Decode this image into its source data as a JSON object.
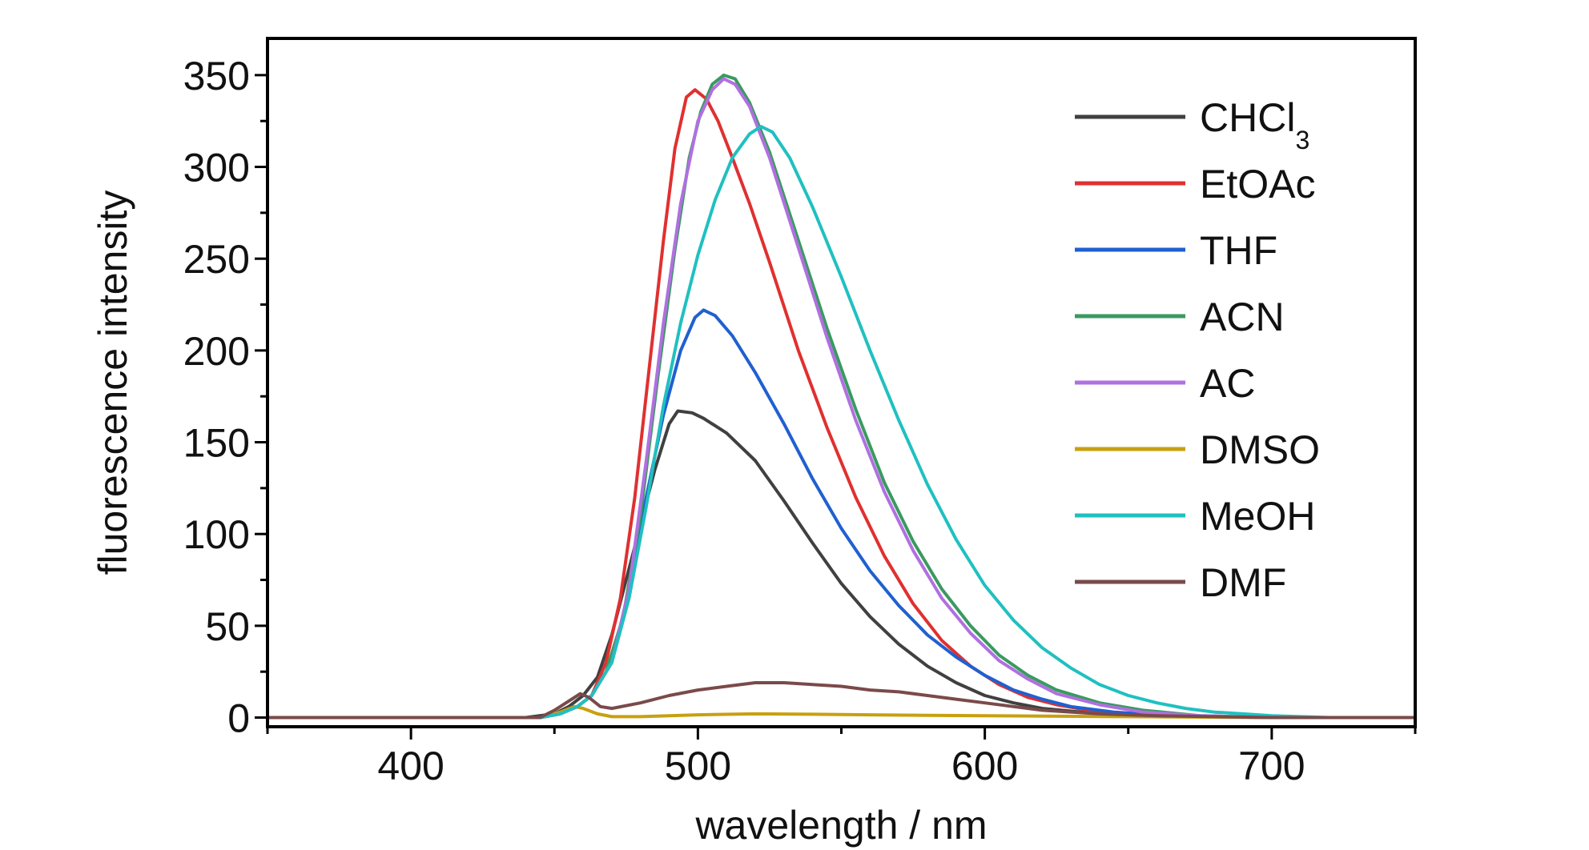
{
  "chart_data": {
    "type": "line",
    "xlabel": "wavelength / nm",
    "ylabel": "fluorescence intensity",
    "xlim": [
      350,
      750
    ],
    "ylim": [
      -5,
      370
    ],
    "xticks": [
      400,
      500,
      600,
      700
    ],
    "yticks": [
      0,
      50,
      100,
      150,
      200,
      250,
      300,
      350
    ],
    "grid": false,
    "legend_position": "top-right",
    "series": [
      {
        "name": "CHCl",
        "subscript": "3",
        "color": "#404040",
        "points": [
          [
            350,
            0
          ],
          [
            440,
            0
          ],
          [
            450,
            2
          ],
          [
            455,
            6
          ],
          [
            460,
            12
          ],
          [
            465,
            22
          ],
          [
            470,
            45
          ],
          [
            475,
            75
          ],
          [
            480,
            105
          ],
          [
            485,
            135
          ],
          [
            490,
            160
          ],
          [
            493,
            167
          ],
          [
            498,
            166
          ],
          [
            502,
            163
          ],
          [
            510,
            155
          ],
          [
            520,
            140
          ],
          [
            530,
            118
          ],
          [
            540,
            95
          ],
          [
            550,
            73
          ],
          [
            560,
            55
          ],
          [
            570,
            40
          ],
          [
            580,
            28
          ],
          [
            590,
            19
          ],
          [
            600,
            12
          ],
          [
            610,
            8
          ],
          [
            620,
            5
          ],
          [
            640,
            2
          ],
          [
            660,
            1
          ],
          [
            700,
            0
          ],
          [
            750,
            0
          ]
        ]
      },
      {
        "name": "EtOAc",
        "color": "#e03030",
        "points": [
          [
            350,
            0
          ],
          [
            445,
            0
          ],
          [
            452,
            2
          ],
          [
            458,
            6
          ],
          [
            463,
            12
          ],
          [
            468,
            30
          ],
          [
            473,
            65
          ],
          [
            478,
            120
          ],
          [
            483,
            190
          ],
          [
            488,
            260
          ],
          [
            492,
            310
          ],
          [
            496,
            338
          ],
          [
            499,
            342
          ],
          [
            503,
            337
          ],
          [
            507,
            325
          ],
          [
            512,
            305
          ],
          [
            518,
            280
          ],
          [
            525,
            248
          ],
          [
            535,
            200
          ],
          [
            545,
            158
          ],
          [
            555,
            120
          ],
          [
            565,
            88
          ],
          [
            575,
            62
          ],
          [
            585,
            42
          ],
          [
            595,
            28
          ],
          [
            605,
            18
          ],
          [
            615,
            11
          ],
          [
            625,
            7
          ],
          [
            640,
            3
          ],
          [
            660,
            1
          ],
          [
            700,
            0
          ],
          [
            750,
            0
          ]
        ]
      },
      {
        "name": "THF",
        "color": "#2060d0",
        "points": [
          [
            350,
            0
          ],
          [
            445,
            0
          ],
          [
            452,
            2
          ],
          [
            458,
            6
          ],
          [
            463,
            12
          ],
          [
            470,
            30
          ],
          [
            476,
            70
          ],
          [
            482,
            120
          ],
          [
            488,
            165
          ],
          [
            494,
            200
          ],
          [
            499,
            218
          ],
          [
            502,
            222
          ],
          [
            506,
            219
          ],
          [
            512,
            208
          ],
          [
            520,
            188
          ],
          [
            530,
            160
          ],
          [
            540,
            130
          ],
          [
            550,
            103
          ],
          [
            560,
            80
          ],
          [
            570,
            61
          ],
          [
            580,
            45
          ],
          [
            590,
            33
          ],
          [
            600,
            23
          ],
          [
            610,
            15
          ],
          [
            620,
            10
          ],
          [
            630,
            6
          ],
          [
            645,
            3
          ],
          [
            665,
            1
          ],
          [
            700,
            0
          ],
          [
            750,
            0
          ]
        ]
      },
      {
        "name": "ACN",
        "color": "#3a9a60",
        "points": [
          [
            350,
            0
          ],
          [
            445,
            0
          ],
          [
            452,
            2
          ],
          [
            458,
            6
          ],
          [
            463,
            12
          ],
          [
            468,
            25
          ],
          [
            474,
            55
          ],
          [
            480,
            110
          ],
          [
            486,
            185
          ],
          [
            492,
            255
          ],
          [
            497,
            305
          ],
          [
            501,
            330
          ],
          [
            505,
            345
          ],
          [
            509,
            350
          ],
          [
            513,
            348
          ],
          [
            518,
            335
          ],
          [
            525,
            308
          ],
          [
            535,
            260
          ],
          [
            545,
            212
          ],
          [
            555,
            168
          ],
          [
            565,
            128
          ],
          [
            575,
            96
          ],
          [
            585,
            70
          ],
          [
            595,
            50
          ],
          [
            605,
            34
          ],
          [
            615,
            23
          ],
          [
            625,
            15
          ],
          [
            640,
            8
          ],
          [
            655,
            4
          ],
          [
            675,
            1
          ],
          [
            700,
            0
          ],
          [
            750,
            0
          ]
        ]
      },
      {
        "name": "AC",
        "color": "#b070e0",
        "points": [
          [
            350,
            0
          ],
          [
            445,
            0
          ],
          [
            452,
            2
          ],
          [
            458,
            6
          ],
          [
            463,
            12
          ],
          [
            470,
            30
          ],
          [
            476,
            70
          ],
          [
            482,
            140
          ],
          [
            488,
            215
          ],
          [
            494,
            280
          ],
          [
            500,
            325
          ],
          [
            505,
            342
          ],
          [
            509,
            348
          ],
          [
            513,
            345
          ],
          [
            518,
            333
          ],
          [
            525,
            305
          ],
          [
            535,
            256
          ],
          [
            545,
            207
          ],
          [
            555,
            162
          ],
          [
            565,
            123
          ],
          [
            575,
            91
          ],
          [
            585,
            65
          ],
          [
            595,
            46
          ],
          [
            605,
            31
          ],
          [
            615,
            21
          ],
          [
            625,
            13
          ],
          [
            640,
            7
          ],
          [
            655,
            3
          ],
          [
            675,
            1
          ],
          [
            700,
            0
          ],
          [
            750,
            0
          ]
        ]
      },
      {
        "name": "DMSO",
        "color": "#c8a010",
        "points": [
          [
            350,
            0
          ],
          [
            445,
            0
          ],
          [
            452,
            3
          ],
          [
            457,
            6
          ],
          [
            460,
            5
          ],
          [
            465,
            2
          ],
          [
            470,
            0.5
          ],
          [
            480,
            0.5
          ],
          [
            500,
            1.5
          ],
          [
            520,
            2
          ],
          [
            540,
            1.8
          ],
          [
            560,
            1.5
          ],
          [
            580,
            1.2
          ],
          [
            600,
            1
          ],
          [
            650,
            0.5
          ],
          [
            700,
            0
          ],
          [
            750,
            0
          ]
        ]
      },
      {
        "name": "MeOH",
        "color": "#20c0c0",
        "points": [
          [
            350,
            0
          ],
          [
            445,
            0
          ],
          [
            452,
            2
          ],
          [
            458,
            6
          ],
          [
            463,
            12
          ],
          [
            470,
            30
          ],
          [
            476,
            65
          ],
          [
            482,
            115
          ],
          [
            488,
            170
          ],
          [
            494,
            215
          ],
          [
            500,
            252
          ],
          [
            506,
            282
          ],
          [
            512,
            305
          ],
          [
            518,
            318
          ],
          [
            522,
            322
          ],
          [
            526,
            319
          ],
          [
            532,
            305
          ],
          [
            540,
            278
          ],
          [
            550,
            240
          ],
          [
            560,
            200
          ],
          [
            570,
            162
          ],
          [
            580,
            127
          ],
          [
            590,
            97
          ],
          [
            600,
            72
          ],
          [
            610,
            53
          ],
          [
            620,
            38
          ],
          [
            630,
            27
          ],
          [
            640,
            18
          ],
          [
            650,
            12
          ],
          [
            660,
            8
          ],
          [
            670,
            5
          ],
          [
            680,
            3
          ],
          [
            690,
            2
          ],
          [
            700,
            1
          ],
          [
            720,
            0
          ],
          [
            750,
            0
          ]
        ]
      },
      {
        "name": "DMF",
        "color": "#7a4a4a",
        "points": [
          [
            350,
            0
          ],
          [
            445,
            0
          ],
          [
            450,
            4
          ],
          [
            455,
            9
          ],
          [
            459,
            13
          ],
          [
            462,
            11
          ],
          [
            466,
            6
          ],
          [
            470,
            5
          ],
          [
            480,
            8
          ],
          [
            490,
            12
          ],
          [
            500,
            15
          ],
          [
            510,
            17
          ],
          [
            520,
            19
          ],
          [
            530,
            19
          ],
          [
            540,
            18
          ],
          [
            550,
            17
          ],
          [
            560,
            15
          ],
          [
            570,
            14
          ],
          [
            580,
            12
          ],
          [
            590,
            10
          ],
          [
            600,
            8
          ],
          [
            610,
            6
          ],
          [
            620,
            4
          ],
          [
            640,
            2
          ],
          [
            660,
            1
          ],
          [
            700,
            0
          ],
          [
            750,
            0
          ]
        ]
      }
    ]
  }
}
